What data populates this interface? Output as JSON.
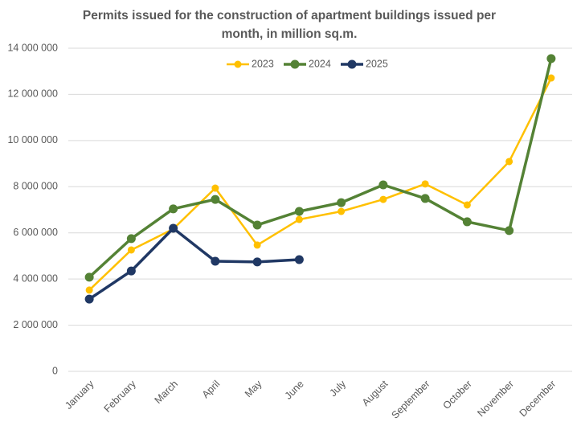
{
  "chart_data": {
    "type": "line",
    "title": "Permits issued for the construction of apartment buildings issued per month, in million sq.m.",
    "categories": [
      "January",
      "February",
      "March",
      "April",
      "May",
      "June",
      "July",
      "August",
      "September",
      "October",
      "November",
      "December"
    ],
    "series": [
      {
        "name": "2023",
        "color": "#ffc000",
        "values": [
          3520000,
          5260000,
          6170000,
          7940000,
          5470000,
          6580000,
          6930000,
          7450000,
          8120000,
          7210000,
          9090000,
          12710000
        ]
      },
      {
        "name": "2024",
        "color": "#548235",
        "values": [
          4080000,
          5750000,
          7040000,
          7450000,
          6340000,
          6930000,
          7310000,
          8080000,
          7490000,
          6480000,
          6100000,
          13550000
        ]
      },
      {
        "name": "2025",
        "color": "#203864",
        "values": [
          3130000,
          4350000,
          6200000,
          4770000,
          4740000,
          4840000,
          null,
          null,
          null,
          null,
          null,
          null
        ]
      }
    ],
    "ylim": [
      0,
      14000000
    ],
    "yticks": [
      0,
      {
        "value": 2000000,
        "label": "2 000 000"
      },
      {
        "value": 4000000,
        "label": "4 000 000"
      },
      {
        "value": 6000000,
        "label": "6 000 000"
      },
      {
        "value": 8000000,
        "label": "8 000 000"
      },
      {
        "value": 10000000,
        "label": "10 000 000"
      },
      {
        "value": 12000000,
        "label": "12 000 000"
      },
      {
        "value": 14000000,
        "label": "14 000 000"
      }
    ],
    "grid": true,
    "legend": "top"
  }
}
